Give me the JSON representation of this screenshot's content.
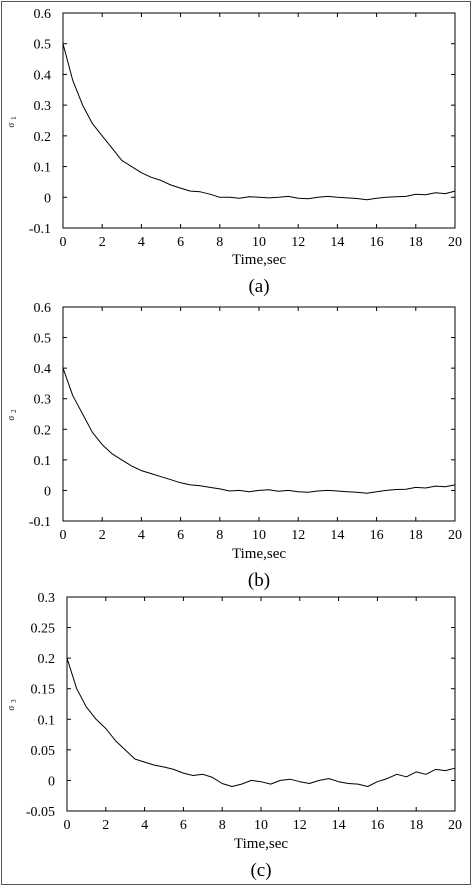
{
  "chart_data": [
    {
      "type": "line",
      "ylabel": "σ",
      "ylabel_sub": "1",
      "xlabel": "Time,sec",
      "panel_label": "(a)",
      "xlim": [
        0,
        20
      ],
      "ylim": [
        -0.1,
        0.6
      ],
      "xticks": [
        0,
        2,
        4,
        6,
        8,
        10,
        12,
        14,
        16,
        18,
        20
      ],
      "yticks": [
        -0.1,
        0,
        0.1,
        0.2,
        0.3,
        0.4,
        0.5,
        0.6
      ],
      "ytick_labels": [
        "-0.1",
        "0",
        "0.1",
        "0.2",
        "0.3",
        "0.4",
        "0.5",
        "0.6"
      ],
      "grid": false,
      "series": [
        {
          "color": "#000000",
          "x": [
            0,
            0.5,
            1,
            1.5,
            2,
            2.5,
            3,
            3.5,
            4,
            4.5,
            5,
            5.5,
            6,
            6.5,
            7,
            7.5,
            8,
            8.5,
            9,
            9.5,
            10,
            10.5,
            11,
            11.5,
            12,
            12.5,
            13,
            13.5,
            14,
            14.5,
            15,
            15.5,
            16,
            16.5,
            17,
            17.5,
            18,
            18.5,
            19,
            19.5,
            20
          ],
          "y": [
            0.5,
            0.38,
            0.3,
            0.24,
            0.2,
            0.16,
            0.12,
            0.1,
            0.08,
            0.065,
            0.055,
            0.04,
            0.03,
            0.02,
            0.018,
            0.01,
            0.0,
            0.0,
            -0.003,
            0.002,
            0.0,
            -0.002,
            0.0,
            0.003,
            -0.003,
            -0.005,
            0.0,
            0.003,
            0.0,
            -0.002,
            -0.004,
            -0.008,
            -0.003,
            0.0,
            0.002,
            0.003,
            0.01,
            0.008,
            0.015,
            0.012,
            0.02
          ]
        }
      ]
    },
    {
      "type": "line",
      "ylabel": "σ",
      "ylabel_sub": "2",
      "xlabel": "Time,sec",
      "panel_label": "(b)",
      "xlim": [
        0,
        20
      ],
      "ylim": [
        -0.1,
        0.6
      ],
      "xticks": [
        0,
        2,
        4,
        6,
        8,
        10,
        12,
        14,
        16,
        18,
        20
      ],
      "yticks": [
        -0.1,
        0,
        0.1,
        0.2,
        0.3,
        0.4,
        0.5,
        0.6
      ],
      "ytick_labels": [
        "-0.1",
        "0",
        "0.1",
        "0.2",
        "0.3",
        "0.4",
        "0.5",
        "0.6"
      ],
      "grid": false,
      "series": [
        {
          "color": "#000000",
          "x": [
            0,
            0.5,
            1,
            1.5,
            2,
            2.5,
            3,
            3.5,
            4,
            4.5,
            5,
            5.5,
            6,
            6.5,
            7,
            7.5,
            8,
            8.5,
            9,
            9.5,
            10,
            10.5,
            11,
            11.5,
            12,
            12.5,
            13,
            13.5,
            14,
            14.5,
            15,
            15.5,
            16,
            16.5,
            17,
            17.5,
            18,
            18.5,
            19,
            19.5,
            20
          ],
          "y": [
            0.4,
            0.31,
            0.25,
            0.19,
            0.15,
            0.12,
            0.1,
            0.08,
            0.065,
            0.055,
            0.045,
            0.035,
            0.025,
            0.018,
            0.015,
            0.01,
            0.005,
            -0.002,
            0.0,
            -0.004,
            0.0,
            0.002,
            -0.003,
            0.0,
            -0.004,
            -0.006,
            -0.002,
            0.0,
            -0.002,
            -0.004,
            -0.006,
            -0.009,
            -0.004,
            0.0,
            0.003,
            0.004,
            0.01,
            0.008,
            0.014,
            0.012,
            0.018
          ]
        }
      ]
    },
    {
      "type": "line",
      "ylabel": "σ",
      "ylabel_sub": "3",
      "xlabel": "Time,sec",
      "panel_label": "(c)",
      "xlim": [
        0,
        20
      ],
      "ylim": [
        -0.05,
        0.3
      ],
      "xticks": [
        0,
        2,
        4,
        6,
        8,
        10,
        12,
        14,
        16,
        18,
        20
      ],
      "yticks": [
        -0.05,
        0,
        0.05,
        0.1,
        0.15,
        0.2,
        0.25,
        0.3
      ],
      "ytick_labels": [
        "-0.05",
        "0",
        "0.05",
        "0.1",
        "0.15",
        "0.2",
        "0.25",
        "0.3"
      ],
      "grid": false,
      "series": [
        {
          "color": "#000000",
          "x": [
            0,
            0.5,
            1,
            1.5,
            2,
            2.5,
            3,
            3.5,
            4,
            4.5,
            5,
            5.5,
            6,
            6.5,
            7,
            7.5,
            8,
            8.5,
            9,
            9.5,
            10,
            10.5,
            11,
            11.5,
            12,
            12.5,
            13,
            13.5,
            14,
            14.5,
            15,
            15.5,
            16,
            16.5,
            17,
            17.5,
            18,
            18.5,
            19,
            19.5,
            20
          ],
          "y": [
            0.2,
            0.15,
            0.12,
            0.1,
            0.085,
            0.065,
            0.05,
            0.035,
            0.03,
            0.025,
            0.022,
            0.018,
            0.012,
            0.008,
            0.01,
            0.005,
            -0.005,
            -0.01,
            -0.006,
            0.0,
            -0.002,
            -0.006,
            0.0,
            0.002,
            -0.002,
            -0.005,
            0.0,
            0.003,
            -0.002,
            -0.005,
            -0.006,
            -0.01,
            -0.002,
            0.003,
            0.01,
            0.006,
            0.014,
            0.01,
            0.018,
            0.016,
            0.02
          ]
        }
      ]
    }
  ]
}
